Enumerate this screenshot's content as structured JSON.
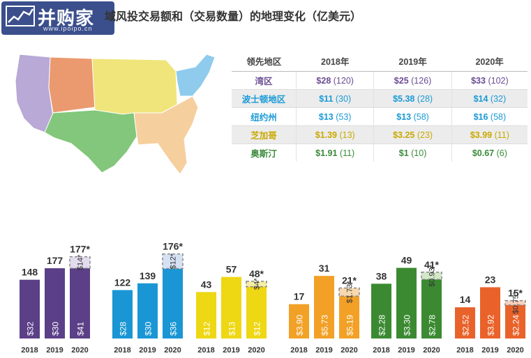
{
  "header": {
    "logo_text": "并购家",
    "logo_url": "www.ipoipo.cn",
    "title": "域风投交易额和（交易数量）的地理变化（亿美元）"
  },
  "table": {
    "columns": [
      "领先地区",
      "2018年",
      "2019年",
      "2020年"
    ],
    "rows": [
      {
        "region": "湾区",
        "color": "#6a4c93",
        "cells": [
          {
            "v": "$28",
            "c": "(120)"
          },
          {
            "v": "$25",
            "c": "(126)"
          },
          {
            "v": "$33",
            "c": "(102)"
          }
        ]
      },
      {
        "region": "波士顿地区",
        "color": "#1a9ad6",
        "cells": [
          {
            "v": "$11",
            "c": "(30)"
          },
          {
            "v": "$5.38",
            "c": "(28)"
          },
          {
            "v": "$14",
            "c": "(32)"
          }
        ]
      },
      {
        "region": "纽约州",
        "color": "#1a9ad6",
        "cells": [
          {
            "v": "$13",
            "c": "(53)"
          },
          {
            "v": "$13",
            "c": "(58)"
          },
          {
            "v": "$16",
            "c": "(58)"
          }
        ]
      },
      {
        "region": "芝加哥",
        "color": "#c9a800",
        "cells": [
          {
            "v": "$1.39",
            "c": "(13)"
          },
          {
            "v": "$3.25",
            "c": "(23)"
          },
          {
            "v": "$3.99",
            "c": "(11)"
          }
        ]
      },
      {
        "region": "奥斯汀",
        "color": "#3a8a3a",
        "cells": [
          {
            "v": "$1.91",
            "c": "(11)"
          },
          {
            "v": "$1",
            "c": "(10)"
          },
          {
            "v": "$0.67",
            "c": "(6)"
          }
        ]
      }
    ]
  },
  "chart_data": [
    {
      "type": "bar",
      "categories": [
        "2018",
        "2019",
        "2020"
      ],
      "color": "#5b3f87",
      "deals": [
        148,
        177,
        177
      ],
      "deals_labels": [
        "148",
        "177",
        "177*"
      ],
      "values": [
        "$32",
        "$30",
        "$41"
      ],
      "extra": {
        "count": 29,
        "label": "$14*",
        "fill": "#e2dcee"
      }
    },
    {
      "type": "bar",
      "categories": [
        "2018",
        "2019",
        "2020"
      ],
      "color": "#1a96d4",
      "deals": [
        122,
        139,
        176
      ],
      "deals_labels": [
        "122",
        "139",
        "176*"
      ],
      "values": [
        "$28",
        "$30",
        "$36"
      ],
      "extra": {
        "count": 37,
        "label": "$12*",
        "fill": "#d6e2f4"
      }
    },
    {
      "type": "bar",
      "categories": [
        "2018",
        "2019",
        "2020"
      ],
      "color": "#eed713",
      "deals": [
        43,
        57,
        48
      ],
      "deals_labels": [
        "43",
        "57",
        "48*"
      ],
      "values": [
        "$12",
        "$13",
        "$12"
      ],
      "extra": {
        "count": 5,
        "label": "$4*",
        "fill": "#f5eea6"
      }
    },
    {
      "type": "bar",
      "categories": [
        "2018",
        "2019",
        "2020"
      ],
      "color": "#f2a126",
      "deals": [
        17,
        31,
        21
      ],
      "deals_labels": [
        "17",
        "31",
        "21*"
      ],
      "values": [
        "$3.90",
        "$5.73",
        "$5.19"
      ],
      "extra": {
        "count": 4,
        "label": "$1.73*",
        "fill": "#f7d9ad"
      }
    },
    {
      "type": "bar",
      "categories": [
        "2018",
        "2019",
        "2020"
      ],
      "color": "#3b8a32",
      "deals": [
        38,
        49,
        41
      ],
      "deals_labels": [
        "38",
        "49",
        "41*"
      ],
      "values": [
        "$2.28",
        "$3.30",
        "$2.78"
      ],
      "extra": {
        "count": 5,
        "label": "$0.93*",
        "fill": "#d2e8c8"
      }
    },
    {
      "type": "bar",
      "categories": [
        "2018",
        "2019",
        "2020"
      ],
      "color": "#e9622a",
      "deals": [
        14,
        23,
        15
      ],
      "deals_labels": [
        "14",
        "23",
        "15*"
      ],
      "values": [
        "$2.52",
        "$3.92",
        "$2.24"
      ],
      "extra": {
        "count": 2,
        "label": "$0.75*",
        "fill": "#f7d2bd"
      }
    }
  ],
  "map": {
    "regions": [
      {
        "name": "west",
        "color": "#b8a9d6"
      },
      {
        "name": "mountain",
        "color": "#ea9a6e"
      },
      {
        "name": "plains",
        "color": "#f0e57a"
      },
      {
        "name": "south-central",
        "color": "#82c77b"
      },
      {
        "name": "southeast",
        "color": "#f6cf9e"
      },
      {
        "name": "northeast",
        "color": "#8ecbec"
      }
    ]
  }
}
